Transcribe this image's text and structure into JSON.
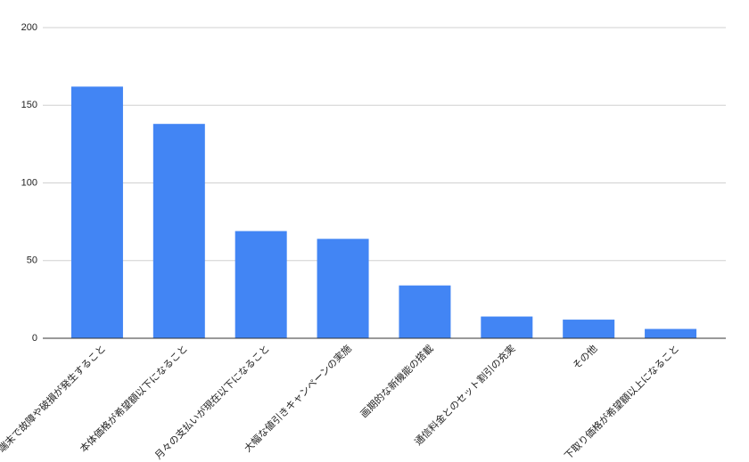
{
  "chart_data": {
    "type": "bar",
    "categories": [
      "端末で故障や破損が発生すること",
      "本体価格が希望額以下になること",
      "月々の支払いが現在以下になること",
      "大幅な値引きキャンペーンの実施",
      "画期的な新機能の搭載",
      "通信料金とのセット割引の充実",
      "その他",
      "下取り価格が希望額以上になること"
    ],
    "values": [
      162,
      138,
      69,
      64,
      34,
      14,
      12,
      6
    ],
    "color": "#4285f4",
    "ylim": [
      0,
      200
    ],
    "yticks": [
      0,
      50,
      100,
      150,
      200
    ],
    "grid": true
  }
}
